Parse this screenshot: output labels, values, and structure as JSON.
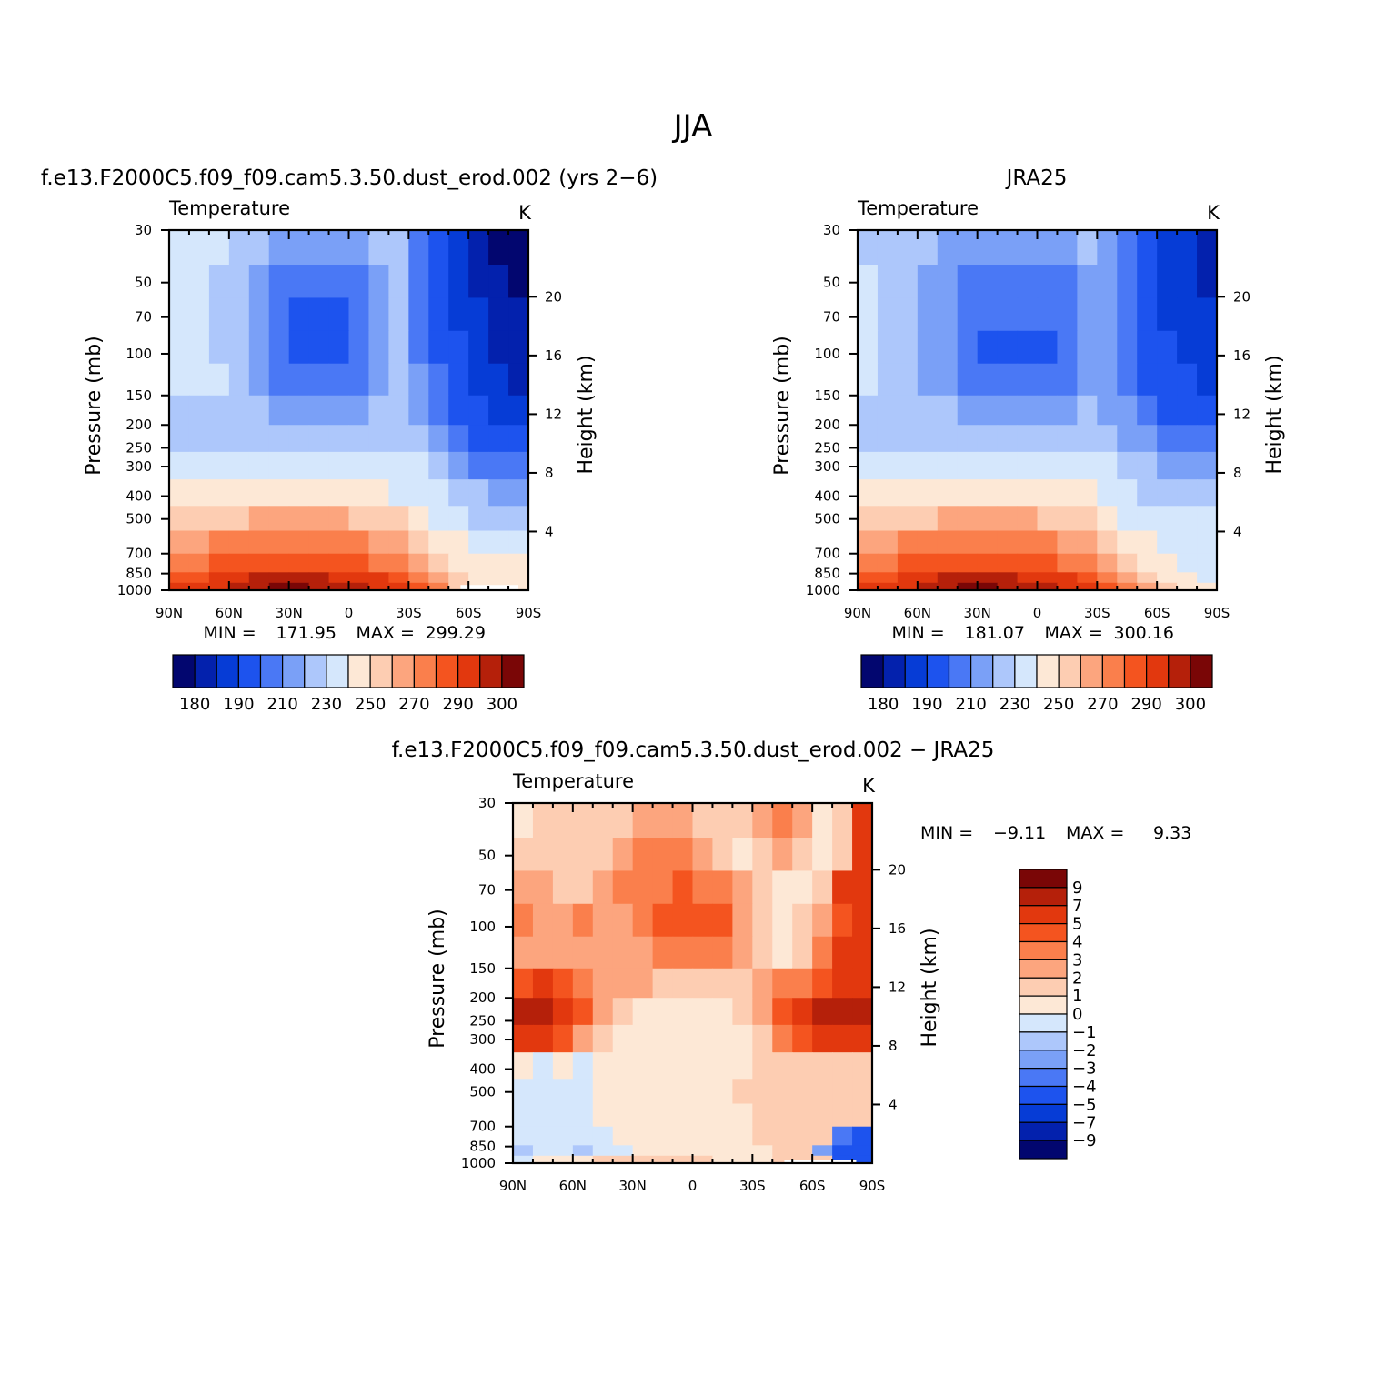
{
  "figure_title": "JJA",
  "chart_data": [
    {
      "type": "heatmap",
      "title": "f.e13.F2000C5.f09_f09.cam5.3.50.dust_erod.002 (yrs 2−6)",
      "variable": "Temperature",
      "units": "K",
      "xlabel": "",
      "ylabel": "Pressure (mb)",
      "ylabel_right": "Height (km)",
      "x_ticks": [
        "90N",
        "60N",
        "30N",
        "0",
        "30S",
        "60S",
        "90S"
      ],
      "x_values": [
        90,
        60,
        30,
        0,
        -30,
        -60,
        -90
      ],
      "y_ticks": [
        "30",
        "50",
        "70",
        "100",
        "150",
        "200",
        "250",
        "300",
        "400",
        "500",
        "700",
        "850",
        "1000"
      ],
      "y_values": [
        30,
        50,
        70,
        100,
        150,
        200,
        250,
        300,
        400,
        500,
        700,
        850,
        1000
      ],
      "right_ticks": [
        "20",
        "16",
        "12",
        "8",
        "4"
      ],
      "right_values": [
        20,
        16,
        12,
        8,
        4
      ],
      "ylim": [
        1000,
        30
      ],
      "y_scale": "log",
      "min_label": "MIN =",
      "min_value": "171.95",
      "max_label": "MAX =",
      "max_value": "299.29",
      "colorbar_levels": [
        "180",
        "190",
        "210",
        "230",
        "250",
        "270",
        "290",
        "300"
      ],
      "colorbar_colors": [
        "#02066f",
        "#0321ad",
        "#063cd6",
        "#1d53ee",
        "#4a78f5",
        "#7aa0f7",
        "#adc7fb",
        "#d5e7fc",
        "#fde8d6",
        "#fdcdb2",
        "#fca57e",
        "#fa7f4c",
        "#f4541f",
        "#e2380e",
        "#b5200a",
        "#7a0606"
      ],
      "field": [
        [
          7,
          7,
          7,
          6,
          6,
          5,
          5,
          5,
          5,
          5,
          6,
          6,
          4,
          3,
          2,
          1,
          0,
          0
        ],
        [
          7,
          7,
          6,
          6,
          5,
          4,
          4,
          4,
          4,
          4,
          5,
          6,
          4,
          3,
          2,
          1,
          1,
          0
        ],
        [
          7,
          7,
          6,
          6,
          5,
          4,
          3,
          3,
          3,
          4,
          5,
          6,
          4,
          3,
          2,
          2,
          1,
          1
        ],
        [
          7,
          7,
          6,
          6,
          5,
          4,
          3,
          3,
          3,
          4,
          5,
          6,
          4,
          3,
          3,
          2,
          1,
          1
        ],
        [
          7,
          7,
          7,
          6,
          5,
          4,
          4,
          4,
          4,
          4,
          5,
          6,
          5,
          4,
          3,
          2,
          2,
          1
        ],
        [
          6,
          6,
          6,
          6,
          6,
          5,
          5,
          5,
          5,
          5,
          6,
          6,
          5,
          4,
          3,
          3,
          2,
          2
        ],
        [
          6,
          6,
          6,
          6,
          6,
          6,
          6,
          6,
          6,
          6,
          6,
          6,
          6,
          5,
          4,
          3,
          3,
          3
        ],
        [
          7,
          7,
          7,
          7,
          7,
          7,
          7,
          7,
          7,
          7,
          7,
          7,
          7,
          6,
          5,
          4,
          4,
          4
        ],
        [
          8,
          8,
          8,
          8,
          8,
          8,
          8,
          8,
          8,
          8,
          8,
          7,
          7,
          7,
          6,
          6,
          5,
          5
        ],
        [
          9,
          9,
          9,
          9,
          10,
          10,
          10,
          10,
          10,
          9,
          9,
          9,
          8,
          7,
          7,
          6,
          6,
          6
        ],
        [
          10,
          10,
          11,
          11,
          11,
          11,
          11,
          11,
          11,
          11,
          10,
          10,
          9,
          8,
          8,
          7,
          7,
          7
        ],
        [
          11,
          11,
          12,
          12,
          12,
          12,
          12,
          12,
          12,
          12,
          11,
          11,
          10,
          9,
          8,
          8,
          8,
          8
        ],
        [
          12,
          12,
          13,
          13,
          14,
          14,
          14,
          14,
          13,
          13,
          13,
          12,
          11,
          10,
          9,
          8,
          8,
          8
        ],
        [
          13,
          13,
          13,
          14,
          14,
          15,
          15,
          14,
          14,
          14,
          13,
          13,
          12,
          11,
          9,
          8,
          8,
          8
        ]
      ],
      "missing_region": "lowest level near 60S–90S"
    },
    {
      "type": "heatmap",
      "title": "JRA25",
      "variable": "Temperature",
      "units": "K",
      "xlabel": "",
      "ylabel": "Pressure (mb)",
      "ylabel_right": "Height (km)",
      "x_ticks": [
        "90N",
        "60N",
        "30N",
        "0",
        "30S",
        "60S",
        "90S"
      ],
      "x_values": [
        90,
        60,
        30,
        0,
        -30,
        -60,
        -90
      ],
      "y_ticks": [
        "30",
        "50",
        "70",
        "100",
        "150",
        "200",
        "250",
        "300",
        "400",
        "500",
        "700",
        "850",
        "1000"
      ],
      "y_values": [
        30,
        50,
        70,
        100,
        150,
        200,
        250,
        300,
        400,
        500,
        700,
        850,
        1000
      ],
      "right_ticks": [
        "20",
        "16",
        "12",
        "8",
        "4"
      ],
      "right_values": [
        20,
        16,
        12,
        8,
        4
      ],
      "ylim": [
        1000,
        30
      ],
      "y_scale": "log",
      "min_label": "MIN =",
      "min_value": "181.07",
      "max_label": "MAX =",
      "max_value": "300.16",
      "colorbar_levels": [
        "180",
        "190",
        "210",
        "230",
        "250",
        "270",
        "290",
        "300"
      ],
      "colorbar_colors": [
        "#02066f",
        "#0321ad",
        "#063cd6",
        "#1d53ee",
        "#4a78f5",
        "#7aa0f7",
        "#adc7fb",
        "#d5e7fc",
        "#fde8d6",
        "#fdcdb2",
        "#fca57e",
        "#fa7f4c",
        "#f4541f",
        "#e2380e",
        "#b5200a",
        "#7a0606"
      ],
      "field": [
        [
          6,
          6,
          6,
          6,
          5,
          5,
          5,
          5,
          5,
          5,
          5,
          6,
          5,
          4,
          3,
          2,
          2,
          1
        ],
        [
          7,
          6,
          6,
          5,
          5,
          4,
          4,
          4,
          4,
          4,
          4,
          5,
          5,
          4,
          3,
          2,
          2,
          1
        ],
        [
          7,
          6,
          6,
          5,
          5,
          4,
          4,
          4,
          4,
          4,
          4,
          5,
          5,
          4,
          3,
          2,
          2,
          2
        ],
        [
          7,
          6,
          6,
          5,
          5,
          4,
          3,
          3,
          3,
          3,
          4,
          5,
          5,
          4,
          3,
          3,
          2,
          2
        ],
        [
          7,
          6,
          6,
          5,
          5,
          4,
          4,
          4,
          4,
          4,
          4,
          5,
          5,
          4,
          3,
          3,
          3,
          2
        ],
        [
          6,
          6,
          6,
          6,
          6,
          5,
          5,
          5,
          5,
          5,
          5,
          6,
          5,
          5,
          4,
          3,
          3,
          3
        ],
        [
          6,
          6,
          6,
          6,
          6,
          6,
          6,
          6,
          6,
          6,
          6,
          6,
          6,
          5,
          5,
          4,
          4,
          4
        ],
        [
          7,
          7,
          7,
          7,
          7,
          7,
          7,
          7,
          7,
          7,
          7,
          7,
          7,
          6,
          6,
          5,
          5,
          5
        ],
        [
          8,
          8,
          8,
          8,
          8,
          8,
          8,
          8,
          8,
          8,
          8,
          8,
          7,
          7,
          6,
          6,
          6,
          6
        ],
        [
          9,
          9,
          9,
          9,
          10,
          10,
          10,
          10,
          10,
          9,
          9,
          9,
          8,
          7,
          7,
          7,
          7,
          7
        ],
        [
          10,
          10,
          11,
          11,
          11,
          11,
          11,
          11,
          11,
          11,
          10,
          10,
          9,
          8,
          8,
          7,
          7,
          7
        ],
        [
          11,
          11,
          12,
          12,
          12,
          12,
          12,
          12,
          12,
          12,
          11,
          11,
          10,
          9,
          8,
          8,
          7,
          7
        ],
        [
          12,
          12,
          13,
          13,
          14,
          14,
          14,
          14,
          13,
          13,
          13,
          12,
          11,
          10,
          9,
          8,
          8,
          7
        ],
        [
          13,
          13,
          13,
          14,
          14,
          15,
          15,
          14,
          14,
          14,
          13,
          13,
          12,
          11,
          10,
          9,
          8,
          8
        ]
      ]
    },
    {
      "type": "heatmap",
      "title": "f.e13.F2000C5.f09_f09.cam5.3.50.dust_erod.002 − JRA25",
      "variable": "Temperature",
      "units": "K",
      "xlabel": "",
      "ylabel": "Pressure (mb)",
      "ylabel_right": "Height (km)",
      "x_ticks": [
        "90N",
        "60N",
        "30N",
        "0",
        "30S",
        "60S",
        "90S"
      ],
      "x_values": [
        90,
        60,
        30,
        0,
        -30,
        -60,
        -90
      ],
      "y_ticks": [
        "30",
        "50",
        "70",
        "100",
        "150",
        "200",
        "250",
        "300",
        "400",
        "500",
        "700",
        "850",
        "1000"
      ],
      "y_values": [
        30,
        50,
        70,
        100,
        150,
        200,
        250,
        300,
        400,
        500,
        700,
        850,
        1000
      ],
      "right_ticks": [
        "20",
        "16",
        "12",
        "8",
        "4"
      ],
      "right_values": [
        20,
        16,
        12,
        8,
        4
      ],
      "ylim": [
        1000,
        30
      ],
      "y_scale": "log",
      "min_label": "MIN =",
      "min_value": "−9.11",
      "max_label": "MAX =",
      "max_value": "9.33",
      "colorbar_levels": [
        "9",
        "7",
        "5",
        "4",
        "3",
        "2",
        "1",
        "0",
        "−1",
        "−2",
        "−3",
        "−4",
        "−5",
        "−7",
        "−9"
      ],
      "colorbar_colors": [
        "#7a0606",
        "#b5200a",
        "#e2380e",
        "#f4541f",
        "#fa7f4c",
        "#fca57e",
        "#fdcdb2",
        "#fde8d6",
        "#d5e7fc",
        "#adc7fb",
        "#7aa0f7",
        "#4a78f5",
        "#1d53ee",
        "#063cd6",
        "#0321ad",
        "#02066f"
      ],
      "field": [
        [
          8,
          9,
          9,
          9,
          9,
          9,
          10,
          10,
          10,
          9,
          9,
          9,
          10,
          11,
          10,
          8,
          9,
          13
        ],
        [
          9,
          9,
          9,
          9,
          9,
          10,
          11,
          11,
          11,
          10,
          9,
          8,
          9,
          10,
          9,
          8,
          9,
          13
        ],
        [
          10,
          10,
          9,
          9,
          10,
          11,
          11,
          11,
          12,
          11,
          11,
          10,
          9,
          8,
          8,
          9,
          13,
          13
        ],
        [
          11,
          10,
          10,
          11,
          10,
          10,
          11,
          12,
          12,
          12,
          12,
          10,
          9,
          8,
          9,
          10,
          12,
          13
        ],
        [
          10,
          10,
          10,
          10,
          10,
          10,
          10,
          11,
          11,
          11,
          11,
          10,
          9,
          8,
          9,
          11,
          13,
          13
        ],
        [
          12,
          13,
          12,
          11,
          10,
          10,
          10,
          9,
          9,
          9,
          9,
          9,
          10,
          11,
          11,
          12,
          13,
          13
        ],
        [
          14,
          14,
          13,
          12,
          10,
          9,
          8,
          8,
          8,
          8,
          8,
          9,
          10,
          12,
          13,
          14,
          14,
          14
        ],
        [
          13,
          13,
          12,
          10,
          9,
          8,
          8,
          8,
          8,
          8,
          8,
          8,
          9,
          11,
          12,
          13,
          13,
          13
        ],
        [
          8,
          7,
          8,
          7,
          8,
          8,
          8,
          8,
          8,
          8,
          8,
          8,
          9,
          9,
          9,
          9,
          9,
          9
        ],
        [
          7,
          7,
          7,
          7,
          8,
          8,
          8,
          8,
          8,
          8,
          8,
          9,
          9,
          9,
          9,
          9,
          9,
          9
        ],
        [
          7,
          7,
          7,
          7,
          8,
          8,
          8,
          8,
          8,
          8,
          8,
          8,
          9,
          9,
          9,
          9,
          9,
          9
        ],
        [
          7,
          7,
          7,
          7,
          7,
          8,
          8,
          8,
          8,
          8,
          8,
          8,
          9,
          9,
          9,
          9,
          4,
          3
        ],
        [
          6,
          7,
          7,
          6,
          7,
          7,
          8,
          8,
          8,
          8,
          8,
          8,
          8,
          9,
          9,
          5,
          3,
          3
        ],
        [
          7,
          8,
          8,
          8,
          9,
          9,
          9,
          9,
          9,
          9,
          8,
          8,
          8,
          9,
          9,
          9,
          3,
          3
        ]
      ],
      "missing_region": "lowest level near 45S–80S"
    }
  ]
}
